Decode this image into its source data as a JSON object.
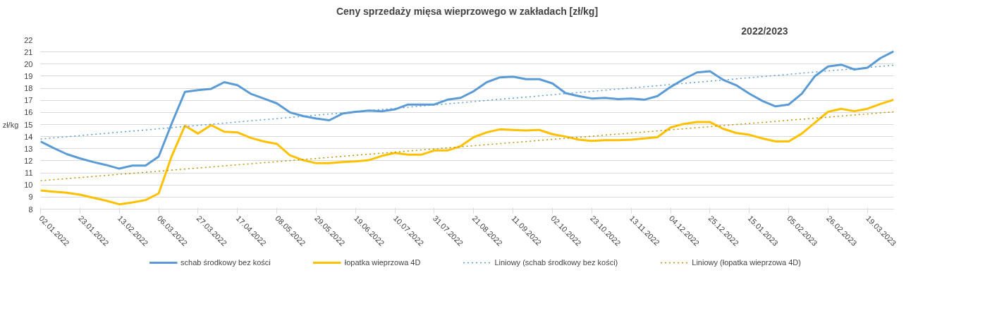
{
  "chart_data": {
    "type": "line",
    "title": "Ceny sprzedaży mięsa wieprzowego w zakładach [zł/kg]",
    "subtitle": "2022/2023",
    "ylabel": "zł/kg",
    "x": [
      "2022-01-02",
      "2022-01-09",
      "2022-01-16",
      "2022-01-23",
      "2022-01-30",
      "2022-02-06",
      "2022-02-13",
      "2022-02-20",
      "2022-02-27",
      "2022-03-06",
      "2022-03-13",
      "2022-03-20",
      "2022-03-27",
      "2022-04-03",
      "2022-04-10",
      "2022-04-17",
      "2022-04-24",
      "2022-05-01",
      "2022-05-08",
      "2022-05-15",
      "2022-05-22",
      "2022-05-29",
      "2022-06-05",
      "2022-06-12",
      "2022-06-19",
      "2022-06-26",
      "2022-07-03",
      "2022-07-10",
      "2022-07-17",
      "2022-07-24",
      "2022-07-31",
      "2022-08-07",
      "2022-08-14",
      "2022-08-21",
      "2022-08-28",
      "2022-09-04",
      "2022-09-11",
      "2022-09-18",
      "2022-09-25",
      "2022-10-02",
      "2022-10-09",
      "2022-10-16",
      "2022-10-23",
      "2022-10-30",
      "2022-11-06",
      "2022-11-13",
      "2022-11-20",
      "2022-11-27",
      "2022-12-04",
      "2022-12-11",
      "2022-12-18",
      "2022-12-25",
      "2023-01-01",
      "2023-01-08",
      "2023-01-15",
      "2023-01-22",
      "2023-01-29",
      "2023-02-05",
      "2023-02-12",
      "2023-02-19",
      "2023-02-26",
      "2023-03-05",
      "2023-03-12",
      "2023-03-19",
      "2023-03-26",
      "2023-04-02"
    ],
    "series": [
      {
        "name": "schab środkowy bez kości",
        "color": "#5b9bd5",
        "line_style": "solid",
        "values": [
          13.6,
          13.05,
          12.55,
          12.2,
          11.9,
          11.65,
          11.35,
          11.6,
          11.6,
          12.35,
          15.1,
          17.7,
          17.85,
          17.95,
          18.5,
          18.25,
          17.55,
          17.15,
          16.75,
          16.0,
          15.7,
          15.5,
          15.35,
          15.9,
          16.05,
          16.15,
          16.1,
          16.25,
          16.65,
          16.65,
          16.65,
          17.05,
          17.2,
          17.75,
          18.5,
          18.9,
          18.95,
          18.75,
          18.75,
          18.4,
          17.6,
          17.35,
          17.15,
          17.2,
          17.1,
          17.15,
          17.05,
          17.35,
          18.1,
          18.75,
          19.3,
          19.4,
          18.7,
          18.25,
          17.55,
          16.95,
          16.5,
          16.65,
          17.55,
          19.0,
          19.8,
          19.95,
          19.55,
          19.7,
          20.5,
          21.05
        ]
      },
      {
        "name": "łopatka wieprzowa 4D",
        "color": "#ffc000",
        "line_style": "solid",
        "values": [
          9.55,
          9.45,
          9.35,
          9.2,
          8.95,
          8.7,
          8.4,
          8.55,
          8.75,
          9.3,
          12.4,
          14.9,
          14.25,
          14.95,
          14.4,
          14.35,
          13.9,
          13.6,
          13.4,
          12.45,
          12.05,
          11.8,
          11.8,
          11.9,
          11.95,
          12.05,
          12.4,
          12.65,
          12.5,
          12.5,
          12.85,
          12.85,
          13.2,
          13.95,
          14.35,
          14.6,
          14.55,
          14.5,
          14.55,
          14.2,
          14.0,
          13.75,
          13.65,
          13.7,
          13.7,
          13.75,
          13.85,
          13.95,
          14.75,
          15.05,
          15.2,
          15.2,
          14.65,
          14.3,
          14.15,
          13.85,
          13.6,
          13.6,
          14.25,
          15.15,
          16.05,
          16.3,
          16.1,
          16.3,
          16.7,
          17.05
        ]
      },
      {
        "name": "Liniowy (schab środkowy bez kości)",
        "color": "#5b9bd5",
        "line_style": "dotted",
        "x": [
          "2022-01-02",
          "2023-04-02"
        ],
        "values": [
          13.8,
          19.9
        ]
      },
      {
        "name": "Liniowy (łopatka wieprzowa 4D)",
        "color": "#bf9000",
        "line_style": "dotted",
        "x": [
          "2022-01-02",
          "2023-04-02"
        ],
        "values": [
          10.35,
          16.05
        ]
      }
    ],
    "xlim": [
      "2022-01-02",
      "2023-04-02"
    ],
    "xticks": [
      {
        "value": "2022-01-02",
        "label": "02.01.2022"
      },
      {
        "value": "2022-01-23",
        "label": "23.01.2022"
      },
      {
        "value": "2022-02-13",
        "label": "13.02.2022"
      },
      {
        "value": "2022-03-06",
        "label": "06.03.2022"
      },
      {
        "value": "2022-03-27",
        "label": "27.03.2022"
      },
      {
        "value": "2022-04-17",
        "label": "17.04.2022"
      },
      {
        "value": "2022-05-08",
        "label": "08.05.2022"
      },
      {
        "value": "2022-05-29",
        "label": "29.05.2022"
      },
      {
        "value": "2022-06-19",
        "label": "19.06.2022"
      },
      {
        "value": "2022-07-10",
        "label": "10.07.2022"
      },
      {
        "value": "2022-07-31",
        "label": "31.07.2022"
      },
      {
        "value": "2022-08-21",
        "label": "21.08.2022"
      },
      {
        "value": "2022-09-11",
        "label": "11.09.2022"
      },
      {
        "value": "2022-10-02",
        "label": "02.10.2022"
      },
      {
        "value": "2022-10-23",
        "label": "23.10.2022"
      },
      {
        "value": "2022-11-13",
        "label": "13.11.2022"
      },
      {
        "value": "2022-12-04",
        "label": "04.12.2022"
      },
      {
        "value": "2022-12-25",
        "label": "25.12.2022"
      },
      {
        "value": "2023-01-15",
        "label": "15.01.2023"
      },
      {
        "value": "2023-02-05",
        "label": "05.02.2023"
      },
      {
        "value": "2023-02-26",
        "label": "26.02.2023"
      },
      {
        "value": "2023-03-19",
        "label": "19.03.2023"
      }
    ],
    "ylim": [
      8,
      22
    ],
    "yticks": [
      8,
      9,
      10,
      11,
      12,
      13,
      14,
      15,
      16,
      17,
      18,
      19,
      20,
      21,
      22
    ],
    "grid": "y",
    "legend": "bottom"
  }
}
